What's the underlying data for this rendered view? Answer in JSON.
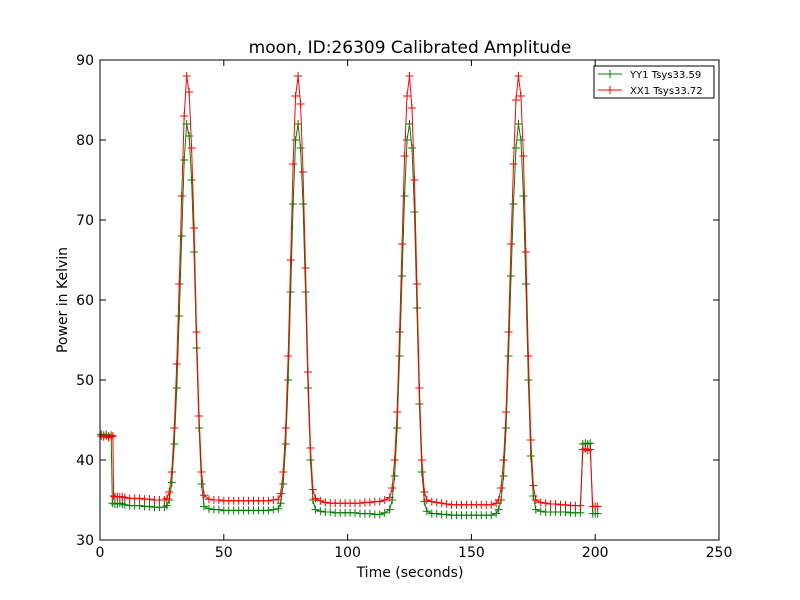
{
  "chart_data": {
    "type": "line",
    "title": "moon, ID:26309 Calibrated Amplitude",
    "xlabel": "Time (seconds)",
    "ylabel": "Power in Kelvin",
    "xlim": [
      0,
      250
    ],
    "ylim": [
      30,
      90
    ],
    "xticks": [
      0,
      50,
      100,
      150,
      200,
      250
    ],
    "yticks": [
      30,
      40,
      50,
      60,
      70,
      80,
      90
    ],
    "grid": false,
    "legend_position": "top-right",
    "series": [
      {
        "name": "YY1 Tsys33.59",
        "color": "#008000",
        "marker": "+",
        "points": [
          [
            0.5,
            43.2
          ],
          [
            1.5,
            43.1
          ],
          [
            2.5,
            43.2
          ],
          [
            3.5,
            43.0
          ],
          [
            4.5,
            43.1
          ],
          [
            5,
            34.6
          ],
          [
            6,
            34.5
          ],
          [
            7,
            34.5
          ],
          [
            8,
            34.6
          ],
          [
            9,
            34.5
          ],
          [
            10,
            34.4
          ],
          [
            12,
            34.3
          ],
          [
            14,
            34.3
          ],
          [
            16,
            34.3
          ],
          [
            18,
            34.2
          ],
          [
            20,
            34.2
          ],
          [
            22,
            34.1
          ],
          [
            24,
            34.1
          ],
          [
            26,
            34.1
          ],
          [
            27,
            34.3
          ],
          [
            28,
            35.0
          ],
          [
            29,
            37.2
          ],
          [
            30,
            42.0
          ],
          [
            31,
            49.0
          ],
          [
            32,
            58.0
          ],
          [
            33,
            68.0
          ],
          [
            34,
            77.5
          ],
          [
            35,
            82.0
          ],
          [
            36,
            80.5
          ],
          [
            37,
            75.0
          ],
          [
            38,
            66.0
          ],
          [
            39,
            54.0
          ],
          [
            40,
            44.0
          ],
          [
            41,
            37.0
          ],
          [
            42,
            34.2
          ],
          [
            44,
            33.9
          ],
          [
            46,
            33.8
          ],
          [
            48,
            33.8
          ],
          [
            50,
            33.7
          ],
          [
            52,
            33.7
          ],
          [
            54,
            33.7
          ],
          [
            56,
            33.7
          ],
          [
            58,
            33.7
          ],
          [
            60,
            33.7
          ],
          [
            62,
            33.7
          ],
          [
            64,
            33.7
          ],
          [
            66,
            33.7
          ],
          [
            68,
            33.7
          ],
          [
            70,
            33.8
          ],
          [
            72,
            33.9
          ],
          [
            73,
            34.6
          ],
          [
            74,
            37.0
          ],
          [
            75,
            42.0
          ],
          [
            76,
            50.0
          ],
          [
            77,
            61.0
          ],
          [
            78,
            72.0
          ],
          [
            79,
            80.0
          ],
          [
            80,
            82.0
          ],
          [
            81,
            79.0
          ],
          [
            82,
            72.0
          ],
          [
            83,
            61.0
          ],
          [
            84,
            49.0
          ],
          [
            85,
            40.0
          ],
          [
            86,
            35.0
          ],
          [
            87,
            33.8
          ],
          [
            89,
            33.6
          ],
          [
            91,
            33.5
          ],
          [
            93,
            33.5
          ],
          [
            95,
            33.4
          ],
          [
            97,
            33.4
          ],
          [
            99,
            33.4
          ],
          [
            101,
            33.4
          ],
          [
            103,
            33.4
          ],
          [
            105,
            33.3
          ],
          [
            107,
            33.3
          ],
          [
            109,
            33.3
          ],
          [
            111,
            33.2
          ],
          [
            113,
            33.2
          ],
          [
            115,
            33.4
          ],
          [
            117,
            33.8
          ],
          [
            118,
            35.0
          ],
          [
            119,
            38.0
          ],
          [
            120,
            44.0
          ],
          [
            121,
            53.0
          ],
          [
            122,
            63.0
          ],
          [
            123,
            73.0
          ],
          [
            124,
            80.0
          ],
          [
            125,
            82.0
          ],
          [
            126,
            79.0
          ],
          [
            127,
            71.0
          ],
          [
            128,
            59.0
          ],
          [
            129,
            47.0
          ],
          [
            130,
            38.5
          ],
          [
            131,
            34.8
          ],
          [
            132,
            33.6
          ],
          [
            134,
            33.3
          ],
          [
            136,
            33.3
          ],
          [
            138,
            33.2
          ],
          [
            140,
            33.2
          ],
          [
            142,
            33.1
          ],
          [
            144,
            33.1
          ],
          [
            146,
            33.1
          ],
          [
            148,
            33.1
          ],
          [
            150,
            33.1
          ],
          [
            152,
            33.1
          ],
          [
            154,
            33.1
          ],
          [
            156,
            33.1
          ],
          [
            158,
            33.1
          ],
          [
            160,
            33.3
          ],
          [
            161,
            33.8
          ],
          [
            162,
            35.0
          ],
          [
            163,
            38.0
          ],
          [
            164,
            44.0
          ],
          [
            165,
            53.0
          ],
          [
            166,
            63.0
          ],
          [
            167,
            72.0
          ],
          [
            168,
            79.0
          ],
          [
            169,
            82.0
          ],
          [
            170,
            80.0
          ],
          [
            171,
            73.0
          ],
          [
            172,
            62.0
          ],
          [
            173,
            50.0
          ],
          [
            174,
            40.5
          ],
          [
            175,
            35.5
          ],
          [
            176,
            33.8
          ],
          [
            178,
            33.6
          ],
          [
            180,
            33.5
          ],
          [
            182,
            33.5
          ],
          [
            184,
            33.5
          ],
          [
            186,
            33.5
          ],
          [
            188,
            33.5
          ],
          [
            190,
            33.4
          ],
          [
            192,
            33.4
          ],
          [
            194,
            33.4
          ],
          [
            195,
            42.0
          ],
          [
            196,
            42.1
          ],
          [
            197,
            42.0
          ],
          [
            198,
            42.1
          ],
          [
            199,
            33.3
          ],
          [
            200,
            33.3
          ],
          [
            201,
            33.3
          ]
        ]
      },
      {
        "name": "XX1 Tsys33.72",
        "color": "#ff0000",
        "marker": "+",
        "points": [
          [
            0.5,
            43.0
          ],
          [
            1.5,
            42.9
          ],
          [
            2.5,
            43.0
          ],
          [
            3.5,
            42.8
          ],
          [
            4.5,
            42.9
          ],
          [
            5.2,
            43.0
          ],
          [
            5.5,
            35.5
          ],
          [
            6,
            35.4
          ],
          [
            7,
            35.4
          ],
          [
            8,
            35.4
          ],
          [
            9,
            35.4
          ],
          [
            10,
            35.3
          ],
          [
            12,
            35.2
          ],
          [
            14,
            35.2
          ],
          [
            16,
            35.2
          ],
          [
            18,
            35.1
          ],
          [
            20,
            35.1
          ],
          [
            22,
            35.0
          ],
          [
            24,
            35.0
          ],
          [
            26,
            35.0
          ],
          [
            27,
            35.2
          ],
          [
            28,
            36.0
          ],
          [
            29,
            38.5
          ],
          [
            30,
            44.0
          ],
          [
            31,
            52.0
          ],
          [
            32,
            62.0
          ],
          [
            33,
            73.0
          ],
          [
            34,
            83.0
          ],
          [
            35,
            88.0
          ],
          [
            36,
            86.0
          ],
          [
            37,
            79.0
          ],
          [
            38,
            69.0
          ],
          [
            39,
            56.0
          ],
          [
            40,
            45.5
          ],
          [
            41,
            38.5
          ],
          [
            42,
            35.6
          ],
          [
            44,
            35.1
          ],
          [
            46,
            35.0
          ],
          [
            48,
            35.0
          ],
          [
            50,
            34.9
          ],
          [
            52,
            34.9
          ],
          [
            54,
            34.9
          ],
          [
            56,
            34.9
          ],
          [
            58,
            34.9
          ],
          [
            60,
            34.9
          ],
          [
            62,
            34.9
          ],
          [
            64,
            34.9
          ],
          [
            66,
            34.9
          ],
          [
            68,
            34.9
          ],
          [
            70,
            35.0
          ],
          [
            72,
            35.1
          ],
          [
            73,
            35.8
          ],
          [
            74,
            38.5
          ],
          [
            75,
            44.0
          ],
          [
            76,
            53.0
          ],
          [
            77,
            65.0
          ],
          [
            78,
            77.0
          ],
          [
            79,
            85.5
          ],
          [
            80,
            88.0
          ],
          [
            81,
            84.5
          ],
          [
            82,
            76.0
          ],
          [
            83,
            64.0
          ],
          [
            84,
            51.0
          ],
          [
            85,
            41.5
          ],
          [
            86,
            36.3
          ],
          [
            87,
            35.2
          ],
          [
            89,
            34.9
          ],
          [
            91,
            34.7
          ],
          [
            93,
            34.6
          ],
          [
            95,
            34.6
          ],
          [
            97,
            34.6
          ],
          [
            99,
            34.6
          ],
          [
            101,
            34.6
          ],
          [
            103,
            34.6
          ],
          [
            105,
            34.6
          ],
          [
            107,
            34.7
          ],
          [
            109,
            34.7
          ],
          [
            111,
            34.8
          ],
          [
            113,
            34.8
          ],
          [
            115,
            35.0
          ],
          [
            117,
            35.3
          ],
          [
            118,
            36.5
          ],
          [
            119,
            40.0
          ],
          [
            120,
            46.0
          ],
          [
            121,
            56.0
          ],
          [
            122,
            67.0
          ],
          [
            123,
            78.0
          ],
          [
            124,
            85.5
          ],
          [
            125,
            88.0
          ],
          [
            126,
            84.0
          ],
          [
            127,
            75.0
          ],
          [
            128,
            62.0
          ],
          [
            129,
            49.0
          ],
          [
            130,
            40.0
          ],
          [
            131,
            36.0
          ],
          [
            132,
            35.0
          ],
          [
            134,
            34.8
          ],
          [
            136,
            34.7
          ],
          [
            138,
            34.6
          ],
          [
            140,
            34.5
          ],
          [
            142,
            34.4
          ],
          [
            144,
            34.4
          ],
          [
            146,
            34.4
          ],
          [
            148,
            34.4
          ],
          [
            150,
            34.4
          ],
          [
            152,
            34.4
          ],
          [
            154,
            34.4
          ],
          [
            156,
            34.4
          ],
          [
            158,
            34.4
          ],
          [
            160,
            34.6
          ],
          [
            161,
            35.0
          ],
          [
            162,
            36.5
          ],
          [
            163,
            40.0
          ],
          [
            164,
            46.0
          ],
          [
            165,
            56.0
          ],
          [
            166,
            67.0
          ],
          [
            167,
            77.0
          ],
          [
            168,
            85.0
          ],
          [
            169,
            88.0
          ],
          [
            170,
            85.5
          ],
          [
            171,
            78.0
          ],
          [
            172,
            66.0
          ],
          [
            173,
            53.0
          ],
          [
            174,
            42.5
          ],
          [
            175,
            36.8
          ],
          [
            176,
            35.0
          ],
          [
            178,
            34.7
          ],
          [
            180,
            34.6
          ],
          [
            182,
            34.5
          ],
          [
            184,
            34.5
          ],
          [
            186,
            34.4
          ],
          [
            188,
            34.4
          ],
          [
            190,
            34.3
          ],
          [
            192,
            34.3
          ],
          [
            194,
            34.3
          ],
          [
            195,
            41.3
          ],
          [
            196,
            41.4
          ],
          [
            197,
            41.2
          ],
          [
            198,
            41.3
          ],
          [
            199,
            34.2
          ],
          [
            200,
            34.2
          ],
          [
            201,
            34.2
          ]
        ]
      }
    ]
  }
}
